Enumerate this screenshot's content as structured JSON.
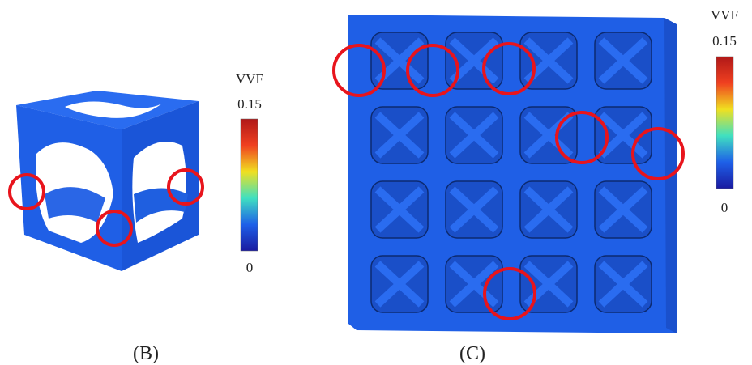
{
  "panels": [
    {
      "label": "(B)",
      "colorbar": {
        "title": "VVF",
        "max": 0.15,
        "min": 0
      }
    },
    {
      "label": "(C)",
      "colorbar": {
        "title": "VVF",
        "max": 0.15,
        "min": 0
      }
    }
  ]
}
